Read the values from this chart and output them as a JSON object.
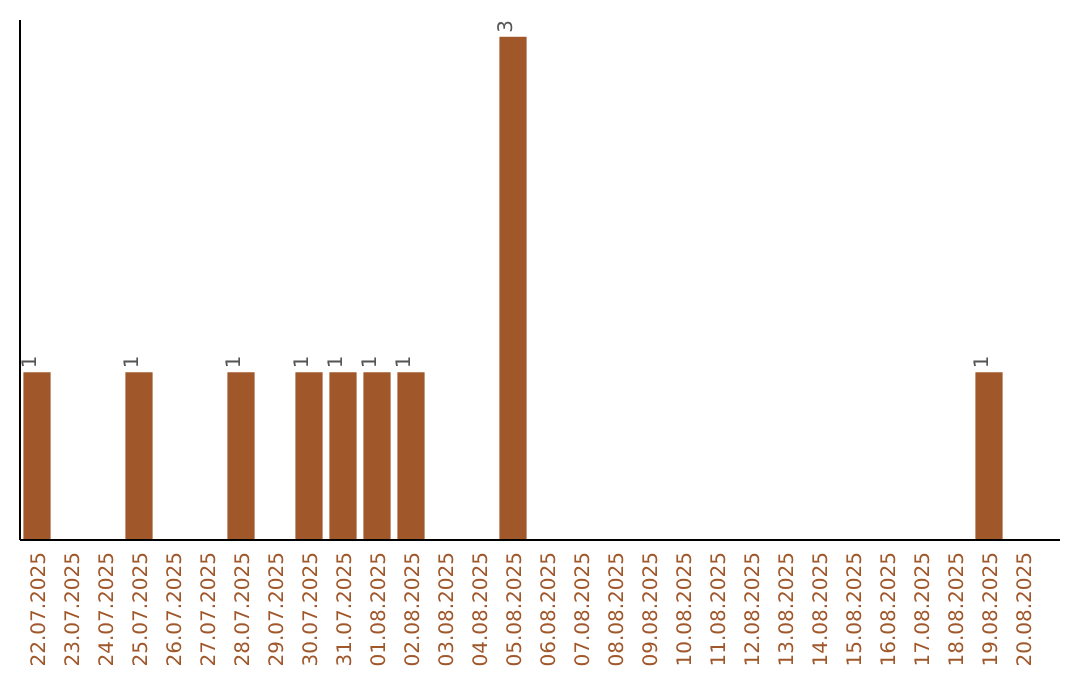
{
  "chart_data": {
    "type": "bar",
    "categories": [
      "22.07.2025",
      "23.07.2025",
      "24.07.2025",
      "25.07.2025",
      "26.07.2025",
      "27.07.2025",
      "28.07.2025",
      "29.07.2025",
      "30.07.2025",
      "31.07.2025",
      "01.08.2025",
      "02.08.2025",
      "03.08.2025",
      "04.08.2025",
      "05.08.2025",
      "06.08.2025",
      "07.08.2025",
      "08.08.2025",
      "09.08.2025",
      "10.08.2025",
      "11.08.2025",
      "12.08.2025",
      "13.08.2025",
      "14.08.2025",
      "15.08.2025",
      "16.08.2025",
      "17.08.2025",
      "18.08.2025",
      "19.08.2025",
      "20.08.2025"
    ],
    "values": [
      1,
      0,
      0,
      1,
      0,
      0,
      1,
      0,
      1,
      1,
      1,
      1,
      0,
      0,
      3,
      0,
      0,
      0,
      0,
      0,
      0,
      0,
      0,
      0,
      0,
      0,
      0,
      0,
      1,
      0
    ],
    "value_labels": [
      "1",
      null,
      null,
      "1",
      null,
      null,
      "1",
      null,
      "1",
      "1",
      "1",
      "1",
      null,
      null,
      "3",
      null,
      null,
      null,
      null,
      null,
      null,
      null,
      null,
      null,
      null,
      null,
      null,
      null,
      "1",
      null
    ],
    "color": "#a0572a",
    "ylim": [
      0,
      3.1
    ]
  }
}
